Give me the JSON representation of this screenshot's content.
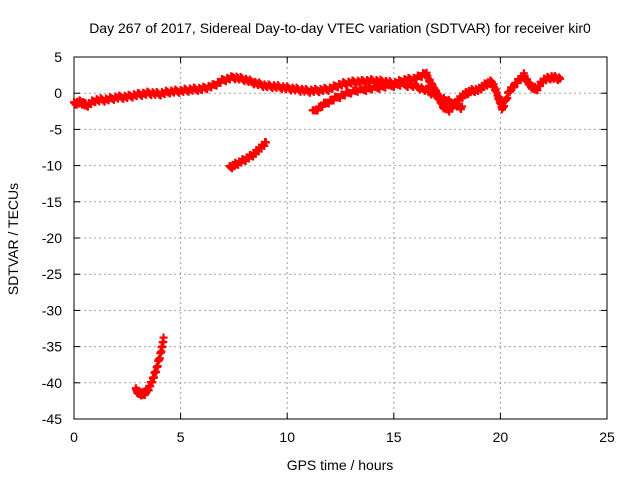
{
  "chart_data": {
    "type": "scatter",
    "title": "Day 267 of 2017, Sidereal Day-to-day VTEC variation (SDTVAR) for receiver kir0",
    "xlabel": "GPS time / hours",
    "ylabel": "SDTVAR / TECUs",
    "xlim": [
      0,
      25
    ],
    "ylim": [
      -45,
      5
    ],
    "xticks": [
      0,
      5,
      10,
      15,
      20,
      25
    ],
    "yticks": [
      5,
      0,
      -5,
      -10,
      -15,
      -20,
      -25,
      -30,
      -35,
      -40,
      -45
    ],
    "grid": true,
    "marker": "plus",
    "series": [
      {
        "name": "main-band",
        "color": "#ff0000",
        "points": [
          [
            0.0,
            -1.5
          ],
          [
            0.3,
            -1.2
          ],
          [
            0.6,
            -1.7
          ],
          [
            1.0,
            -1.0
          ],
          [
            1.5,
            -0.9
          ],
          [
            2.0,
            -0.6
          ],
          [
            2.5,
            -0.5
          ],
          [
            3.0,
            -0.2
          ],
          [
            3.5,
            0.0
          ],
          [
            4.0,
            -0.1
          ],
          [
            4.5,
            0.2
          ],
          [
            5.0,
            0.3
          ],
          [
            5.5,
            0.5
          ],
          [
            6.0,
            0.6
          ],
          [
            6.5,
            1.0
          ],
          [
            7.0,
            1.8
          ],
          [
            7.5,
            2.2
          ],
          [
            8.0,
            1.9
          ],
          [
            8.5,
            1.4
          ],
          [
            9.0,
            1.0
          ],
          [
            9.5,
            0.9
          ],
          [
            10.0,
            0.7
          ],
          [
            10.5,
            0.5
          ],
          [
            11.0,
            0.3
          ],
          [
            11.5,
            0.4
          ],
          [
            12.0,
            0.6
          ],
          [
            12.5,
            1.2
          ],
          [
            13.0,
            1.5
          ],
          [
            13.5,
            1.6
          ],
          [
            14.0,
            1.7
          ],
          [
            14.5,
            1.6
          ],
          [
            15.0,
            1.3
          ],
          [
            15.5,
            1.8
          ],
          [
            16.0,
            2.0
          ],
          [
            16.5,
            2.8
          ],
          [
            16.8,
            1.0
          ],
          [
            17.0,
            0.0
          ],
          [
            17.3,
            -1.8
          ],
          [
            17.6,
            -2.3
          ],
          [
            18.0,
            -1.0
          ],
          [
            18.3,
            -0.2
          ],
          [
            18.6,
            0.3
          ],
          [
            19.0,
            0.5
          ],
          [
            19.3,
            1.2
          ],
          [
            19.6,
            1.6
          ],
          [
            19.9,
            -0.5
          ],
          [
            20.1,
            -2.2
          ],
          [
            20.4,
            0.2
          ],
          [
            20.8,
            1.6
          ],
          [
            21.1,
            2.5
          ],
          [
            21.4,
            1.0
          ],
          [
            21.7,
            0.5
          ],
          [
            22.0,
            1.8
          ],
          [
            22.4,
            2.2
          ],
          [
            22.8,
            2.0
          ]
        ]
      },
      {
        "name": "descending-band",
        "color": "#ff0000",
        "points": [
          [
            11.2,
            -2.6
          ],
          [
            11.8,
            -1.4
          ],
          [
            12.4,
            -0.5
          ],
          [
            13.0,
            0.2
          ],
          [
            13.8,
            0.6
          ],
          [
            14.5,
            0.9
          ],
          [
            15.3,
            1.2
          ],
          [
            16.0,
            1.0
          ],
          [
            16.6,
            0.3
          ],
          [
            17.2,
            -0.6
          ],
          [
            17.8,
            -1.5
          ],
          [
            18.2,
            -2.0
          ]
        ]
      },
      {
        "name": "isolated-segment-mid",
        "color": "#ff0000",
        "points": [
          [
            7.3,
            -10.3
          ],
          [
            7.6,
            -9.8
          ],
          [
            8.0,
            -9.2
          ],
          [
            8.4,
            -8.5
          ],
          [
            8.7,
            -7.7
          ],
          [
            9.0,
            -6.8
          ]
        ]
      },
      {
        "name": "isolated-segment-low",
        "color": "#ff0000",
        "points": [
          [
            2.9,
            -41.0
          ],
          [
            3.1,
            -41.5
          ],
          [
            3.3,
            -41.5
          ],
          [
            3.5,
            -40.8
          ],
          [
            3.7,
            -39.5
          ],
          [
            3.9,
            -37.8
          ],
          [
            4.1,
            -35.5
          ],
          [
            4.2,
            -34.0
          ]
        ]
      }
    ]
  }
}
